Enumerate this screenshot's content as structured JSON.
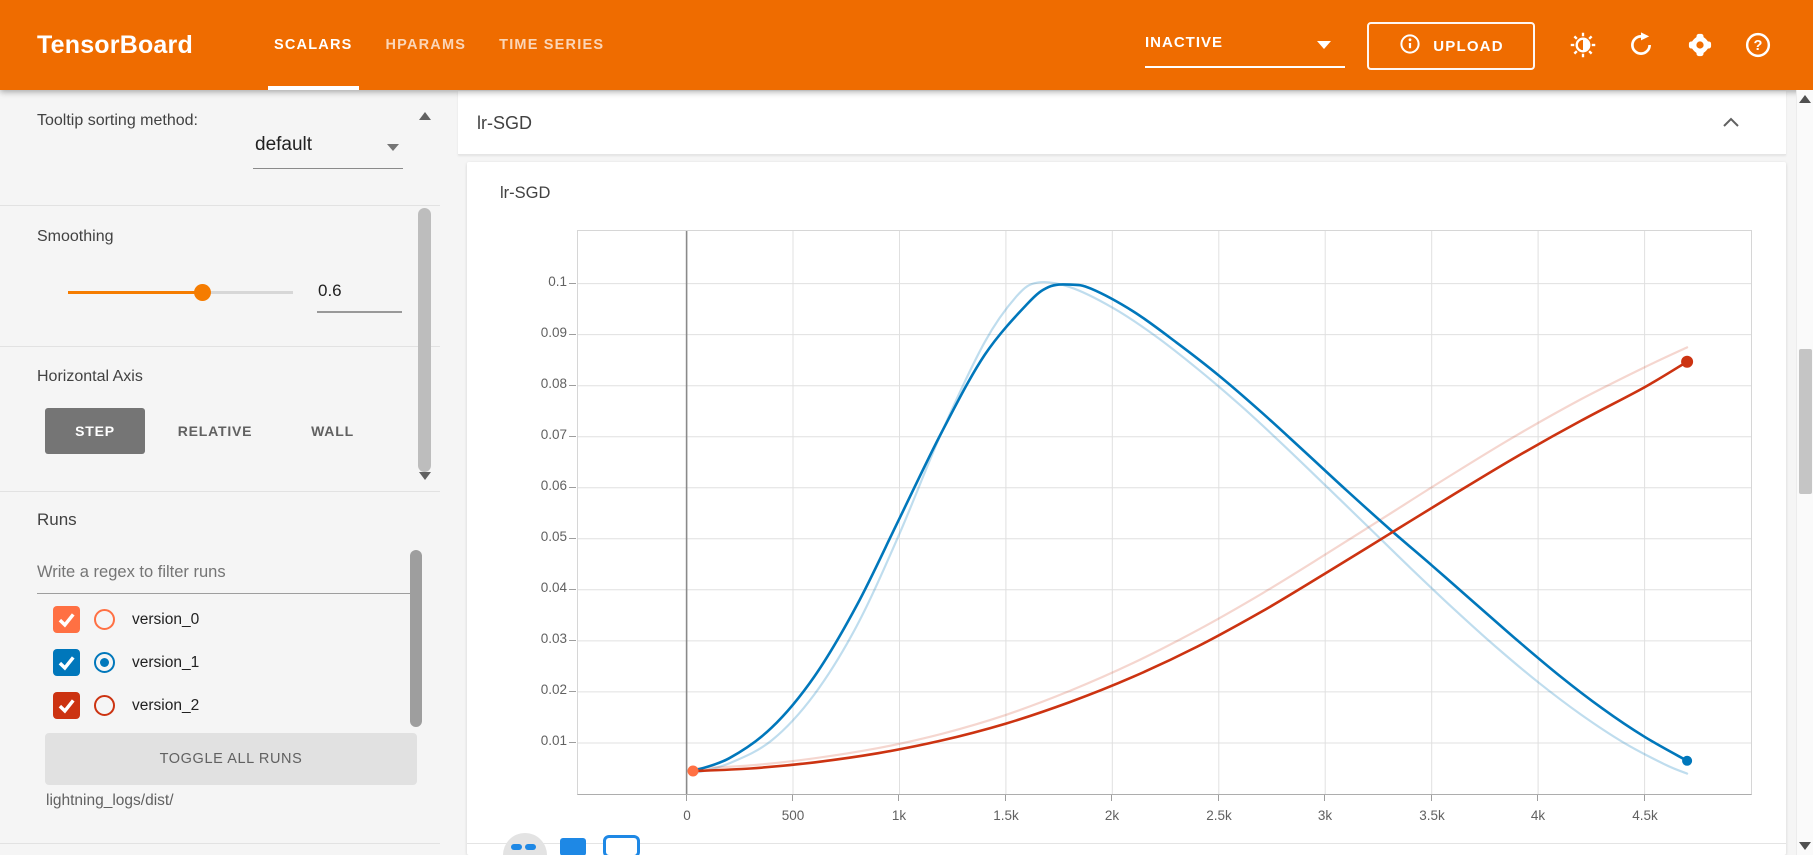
{
  "header": {
    "logo": "TensorBoard",
    "tabs": [
      {
        "label": "SCALARS",
        "active": true
      },
      {
        "label": "HPARAMS",
        "active": false
      },
      {
        "label": "TIME SERIES",
        "active": false
      }
    ],
    "status": "INACTIVE",
    "upload_label": "UPLOAD",
    "bg_color": "#ef6c00",
    "icons": [
      "brightness-icon",
      "refresh-icon",
      "settings-icon",
      "help-icon"
    ]
  },
  "sidebar": {
    "tooltip_sorting_label": "Tooltip sorting method:",
    "tooltip_sorting_value": "default",
    "smoothing_label": "Smoothing",
    "smoothing_value": "0.6",
    "horizontal_axis_label": "Horizontal Axis",
    "axis_options": [
      {
        "label": "STEP",
        "selected": true
      },
      {
        "label": "RELATIVE",
        "selected": false
      },
      {
        "label": "WALL",
        "selected": false
      }
    ],
    "runs_label": "Runs",
    "runs_filter_placeholder": "Write a regex to filter runs",
    "runs": [
      {
        "name": "version_0",
        "color": "#ff7043",
        "checked": true,
        "radio_selected": false
      },
      {
        "name": "version_1",
        "color": "#0077bb",
        "checked": true,
        "radio_selected": true
      },
      {
        "name": "version_2",
        "color": "#cc3311",
        "checked": true,
        "radio_selected": false
      }
    ],
    "toggle_all_label": "TOGGLE ALL RUNS",
    "log_path": "lightning_logs/dist/"
  },
  "main": {
    "group_title": "lr-SGD"
  },
  "chart_data": {
    "type": "line",
    "title": "lr-SGD",
    "xlabel": "",
    "ylabel": "",
    "xlim": [
      -510,
      5000
    ],
    "ylim": [
      0,
      0.1103
    ],
    "grid": true,
    "legend": "none",
    "x_ticks": [
      {
        "v": 0,
        "label": "0"
      },
      {
        "v": 500,
        "label": "500"
      },
      {
        "v": 1000,
        "label": "1k"
      },
      {
        "v": 1500,
        "label": "1.5k"
      },
      {
        "v": 2000,
        "label": "2k"
      },
      {
        "v": 2500,
        "label": "2.5k"
      },
      {
        "v": 3000,
        "label": "3k"
      },
      {
        "v": 3500,
        "label": "3.5k"
      },
      {
        "v": 4000,
        "label": "4k"
      },
      {
        "v": 4500,
        "label": "4.5k"
      }
    ],
    "y_ticks": [
      {
        "v": 0.01,
        "label": "0.01"
      },
      {
        "v": 0.02,
        "label": "0.02"
      },
      {
        "v": 0.03,
        "label": "0.03"
      },
      {
        "v": 0.04,
        "label": "0.04"
      },
      {
        "v": 0.05,
        "label": "0.05"
      },
      {
        "v": 0.06,
        "label": "0.06"
      },
      {
        "v": 0.07,
        "label": "0.07"
      },
      {
        "v": 0.08,
        "label": "0.08"
      },
      {
        "v": 0.09,
        "label": "0.09"
      },
      {
        "v": 0.1,
        "label": "0.1"
      }
    ],
    "x_grid": [
      0,
      500,
      1000,
      1500,
      2000,
      2500,
      3000,
      3500,
      4000,
      4500
    ],
    "y_grid": [
      0.01,
      0.02,
      0.03,
      0.04,
      0.05,
      0.06,
      0.07,
      0.08,
      0.09,
      0.1
    ],
    "zero_line_x": 0,
    "series": [
      {
        "name": "version_1-raw",
        "color": "rgba(0,119,187,0.25)",
        "width": 2.2,
        "points": [
          [
            30,
            0.004
          ],
          [
            200,
            0.006
          ],
          [
            400,
            0.0105
          ],
          [
            600,
            0.0195
          ],
          [
            800,
            0.033
          ],
          [
            1000,
            0.051
          ],
          [
            1200,
            0.071
          ],
          [
            1400,
            0.0885
          ],
          [
            1550,
            0.0975
          ],
          [
            1650,
            0.1002
          ],
          [
            1800,
            0.0993
          ],
          [
            2000,
            0.0953
          ],
          [
            2200,
            0.0898
          ],
          [
            2400,
            0.0833
          ],
          [
            2600,
            0.0762
          ],
          [
            2800,
            0.0685
          ],
          [
            3000,
            0.0605
          ],
          [
            3200,
            0.0524
          ],
          [
            3400,
            0.0443
          ],
          [
            3600,
            0.0364
          ],
          [
            3800,
            0.0289
          ],
          [
            4000,
            0.0219
          ],
          [
            4200,
            0.0156
          ],
          [
            4400,
            0.0101
          ],
          [
            4600,
            0.0057
          ],
          [
            4700,
            0.004
          ]
        ]
      },
      {
        "name": "version_2-raw",
        "color": "rgba(204,51,17,0.2)",
        "width": 2.2,
        "points": [
          [
            30,
            0.005
          ],
          [
            300,
            0.0056
          ],
          [
            600,
            0.007
          ],
          [
            900,
            0.009
          ],
          [
            1200,
            0.0118
          ],
          [
            1500,
            0.0155
          ],
          [
            1800,
            0.0202
          ],
          [
            2100,
            0.0257
          ],
          [
            2400,
            0.0321
          ],
          [
            2700,
            0.0392
          ],
          [
            3000,
            0.0469
          ],
          [
            3300,
            0.0548
          ],
          [
            3600,
            0.0627
          ],
          [
            3900,
            0.0703
          ],
          [
            4200,
            0.0773
          ],
          [
            4500,
            0.0836
          ],
          [
            4700,
            0.0875
          ]
        ]
      },
      {
        "name": "version_1-smoothed",
        "color": "#0077bb",
        "width": 2.6,
        "points": [
          [
            30,
            0.0045
          ],
          [
            200,
            0.007
          ],
          [
            400,
            0.013
          ],
          [
            600,
            0.023
          ],
          [
            800,
            0.037
          ],
          [
            1000,
            0.054
          ],
          [
            1200,
            0.071
          ],
          [
            1400,
            0.086
          ],
          [
            1600,
            0.096
          ],
          [
            1700,
            0.0993
          ],
          [
            1800,
            0.0998
          ],
          [
            1900,
            0.099
          ],
          [
            2100,
            0.0945
          ],
          [
            2300,
            0.0885
          ],
          [
            2500,
            0.082
          ],
          [
            2700,
            0.0748
          ],
          [
            2900,
            0.0672
          ],
          [
            3100,
            0.0595
          ],
          [
            3300,
            0.052
          ],
          [
            3500,
            0.0448
          ],
          [
            3700,
            0.0375
          ],
          [
            3900,
            0.0302
          ],
          [
            4100,
            0.0232
          ],
          [
            4300,
            0.0168
          ],
          [
            4500,
            0.0112
          ],
          [
            4700,
            0.0065
          ]
        ]
      },
      {
        "name": "version_2-smoothed",
        "color": "#cc3311",
        "width": 2.6,
        "points": [
          [
            30,
            0.0045
          ],
          [
            300,
            0.005
          ],
          [
            600,
            0.0062
          ],
          [
            900,
            0.008
          ],
          [
            1200,
            0.0105
          ],
          [
            1500,
            0.0138
          ],
          [
            1800,
            0.018
          ],
          [
            2100,
            0.023
          ],
          [
            2400,
            0.0289
          ],
          [
            2700,
            0.0357
          ],
          [
            3000,
            0.0432
          ],
          [
            3300,
            0.0509
          ],
          [
            3600,
            0.0586
          ],
          [
            3900,
            0.0661
          ],
          [
            4200,
            0.0731
          ],
          [
            4500,
            0.0797
          ],
          [
            4700,
            0.0847
          ]
        ]
      }
    ],
    "markers": [
      {
        "name": "version_0",
        "x": 30,
        "y": 0.0045,
        "color": "#ff7043",
        "r": 5.5
      },
      {
        "name": "version_1",
        "x": 4700,
        "y": 0.0065,
        "color": "#0077bb",
        "r": 5
      },
      {
        "name": "version_2",
        "x": 4700,
        "y": 0.0847,
        "color": "#cc3311",
        "r": 6
      }
    ]
  }
}
